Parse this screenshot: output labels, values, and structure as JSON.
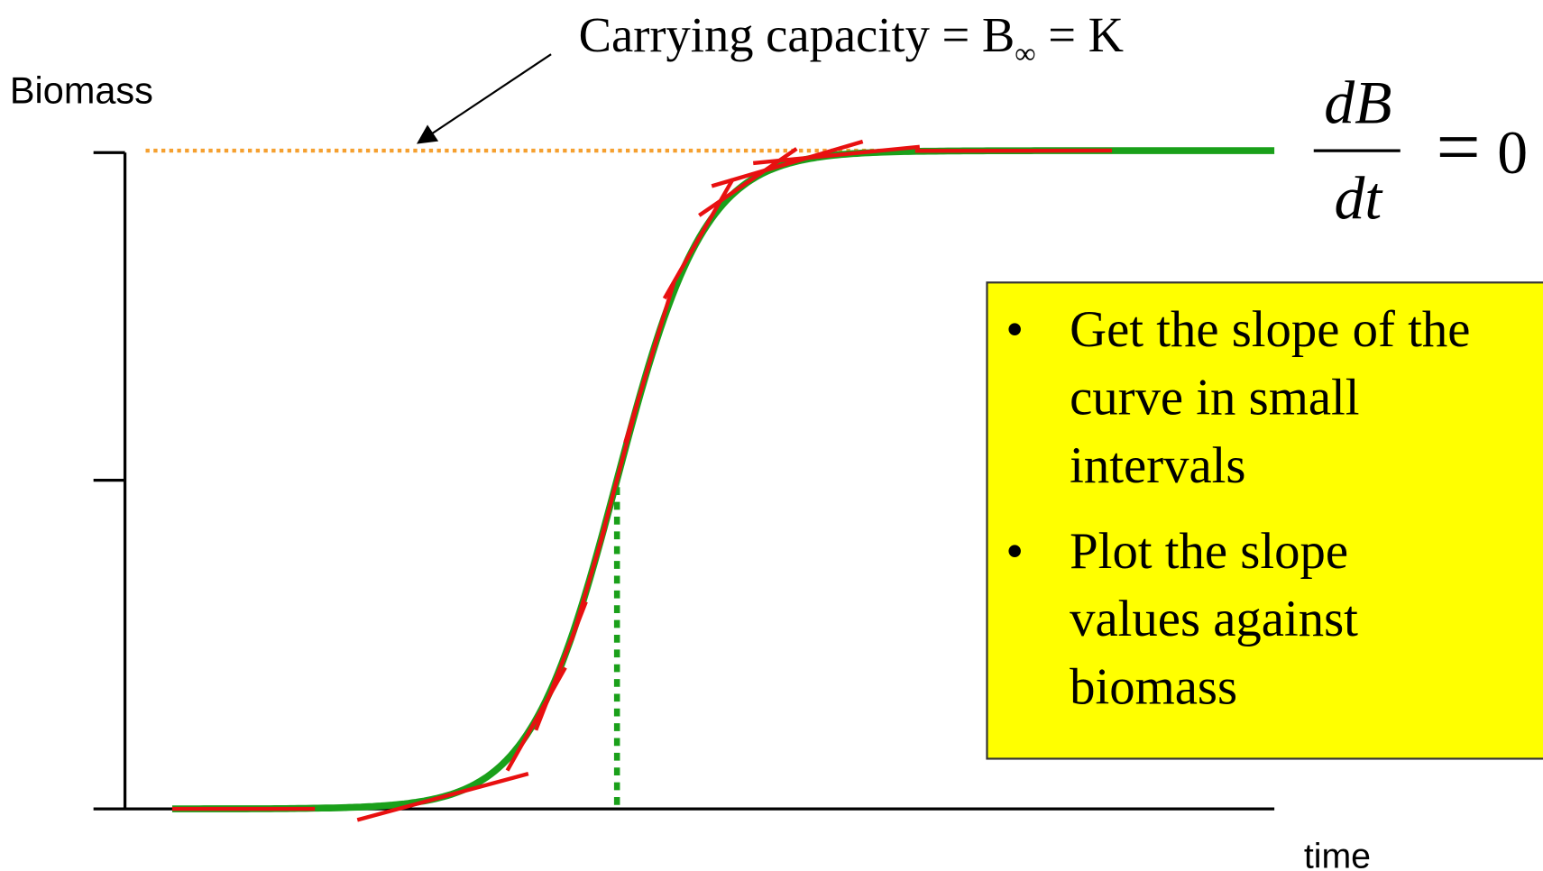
{
  "title": {
    "main": "Carrying capacity = B",
    "subscript": "∞",
    "tail": " = K"
  },
  "y_axis_label": "Biomass",
  "x_axis_label": "time",
  "equation": {
    "numerator": "dB",
    "denominator": "dt",
    "equals": "=",
    "rhs": "0"
  },
  "box": {
    "items": [
      [
        "Get the slope of the",
        "curve in small",
        "intervals"
      ],
      [
        "Plot the slope",
        "values against",
        "biomass"
      ]
    ],
    "bullet": "•"
  }
}
